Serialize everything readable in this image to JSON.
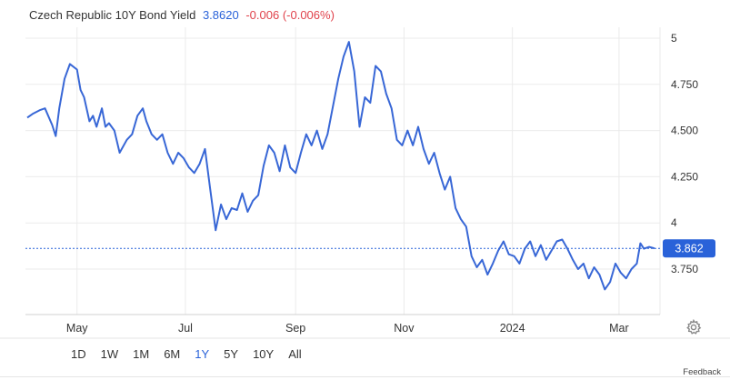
{
  "header": {
    "title": "Czech Republic 10Y Bond Yield",
    "price": "3.8620",
    "change": "-0.006 (-0.006%)"
  },
  "current_label": "3.862",
  "ranges": [
    {
      "label": "1D",
      "active": false
    },
    {
      "label": "1W",
      "active": false
    },
    {
      "label": "1M",
      "active": false
    },
    {
      "label": "6M",
      "active": false
    },
    {
      "label": "1Y",
      "active": true
    },
    {
      "label": "5Y",
      "active": false
    },
    {
      "label": "10Y",
      "active": false
    },
    {
      "label": "All",
      "active": false
    }
  ],
  "feedback": "Feedback",
  "colors": {
    "line": "#3867d6",
    "accent": "#2962d9",
    "negative": "#e0424b",
    "grid": "#ebebeb"
  },
  "icons": {
    "settings": "gear-icon"
  },
  "chart_data": {
    "type": "line",
    "title": "Czech Republic 10Y Bond Yield",
    "xlabel": "",
    "ylabel": "",
    "x_start": "2023-04-03",
    "x_end": "2024-03-21",
    "ylim": [
      3.5,
      5.0
    ],
    "y_ticks": [
      {
        "value": 5,
        "label": "5"
      },
      {
        "value": 4.75,
        "label": "4.750"
      },
      {
        "value": 4.5,
        "label": "4.500"
      },
      {
        "value": 4.25,
        "label": "4.250"
      },
      {
        "value": 4,
        "label": "4"
      },
      {
        "value": 3.75,
        "label": "3.750"
      }
    ],
    "x_ticks": [
      {
        "date": "2023-05-01",
        "label": "May"
      },
      {
        "date": "2023-07-01",
        "label": "Jul"
      },
      {
        "date": "2023-09-01",
        "label": "Sep"
      },
      {
        "date": "2023-11-01",
        "label": "Nov"
      },
      {
        "date": "2024-01-01",
        "label": "2024"
      },
      {
        "date": "2024-03-01",
        "label": "Mar"
      }
    ],
    "grid": true,
    "last_value": 3.862,
    "series": [
      {
        "points": [
          [
            "2023-04-03",
            4.57
          ],
          [
            "2023-04-06",
            4.59
          ],
          [
            "2023-04-10",
            4.61
          ],
          [
            "2023-04-13",
            4.62
          ],
          [
            "2023-04-17",
            4.53
          ],
          [
            "2023-04-19",
            4.47
          ],
          [
            "2023-04-21",
            4.62
          ],
          [
            "2023-04-24",
            4.78
          ],
          [
            "2023-04-27",
            4.86
          ],
          [
            "2023-05-01",
            4.83
          ],
          [
            "2023-05-03",
            4.72
          ],
          [
            "2023-05-05",
            4.68
          ],
          [
            "2023-05-08",
            4.55
          ],
          [
            "2023-05-10",
            4.58
          ],
          [
            "2023-05-12",
            4.52
          ],
          [
            "2023-05-15",
            4.62
          ],
          [
            "2023-05-17",
            4.52
          ],
          [
            "2023-05-19",
            4.54
          ],
          [
            "2023-05-22",
            4.5
          ],
          [
            "2023-05-25",
            4.38
          ],
          [
            "2023-05-29",
            4.45
          ],
          [
            "2023-06-01",
            4.48
          ],
          [
            "2023-06-04",
            4.58
          ],
          [
            "2023-06-07",
            4.62
          ],
          [
            "2023-06-09",
            4.55
          ],
          [
            "2023-06-12",
            4.48
          ],
          [
            "2023-06-15",
            4.45
          ],
          [
            "2023-06-18",
            4.48
          ],
          [
            "2023-06-21",
            4.38
          ],
          [
            "2023-06-24",
            4.32
          ],
          [
            "2023-06-27",
            4.38
          ],
          [
            "2023-06-30",
            4.35
          ],
          [
            "2023-07-03",
            4.3
          ],
          [
            "2023-07-06",
            4.27
          ],
          [
            "2023-07-09",
            4.32
          ],
          [
            "2023-07-12",
            4.4
          ],
          [
            "2023-07-15",
            4.18
          ],
          [
            "2023-07-18",
            3.96
          ],
          [
            "2023-07-21",
            4.1
          ],
          [
            "2023-07-24",
            4.02
          ],
          [
            "2023-07-27",
            4.08
          ],
          [
            "2023-07-30",
            4.07
          ],
          [
            "2023-08-02",
            4.16
          ],
          [
            "2023-08-05",
            4.06
          ],
          [
            "2023-08-08",
            4.12
          ],
          [
            "2023-08-11",
            4.15
          ],
          [
            "2023-08-14",
            4.31
          ],
          [
            "2023-08-17",
            4.42
          ],
          [
            "2023-08-20",
            4.38
          ],
          [
            "2023-08-23",
            4.28
          ],
          [
            "2023-08-26",
            4.42
          ],
          [
            "2023-08-29",
            4.3
          ],
          [
            "2023-09-01",
            4.27
          ],
          [
            "2023-09-04",
            4.38
          ],
          [
            "2023-09-07",
            4.48
          ],
          [
            "2023-09-10",
            4.42
          ],
          [
            "2023-09-13",
            4.5
          ],
          [
            "2023-09-16",
            4.4
          ],
          [
            "2023-09-19",
            4.48
          ],
          [
            "2023-09-22",
            4.63
          ],
          [
            "2023-09-25",
            4.78
          ],
          [
            "2023-09-28",
            4.9
          ],
          [
            "2023-10-01",
            4.98
          ],
          [
            "2023-10-04",
            4.82
          ],
          [
            "2023-10-07",
            4.52
          ],
          [
            "2023-10-10",
            4.68
          ],
          [
            "2023-10-13",
            4.65
          ],
          [
            "2023-10-16",
            4.85
          ],
          [
            "2023-10-19",
            4.82
          ],
          [
            "2023-10-22",
            4.7
          ],
          [
            "2023-10-25",
            4.62
          ],
          [
            "2023-10-28",
            4.45
          ],
          [
            "2023-10-31",
            4.42
          ],
          [
            "2023-11-03",
            4.5
          ],
          [
            "2023-11-06",
            4.42
          ],
          [
            "2023-11-09",
            4.52
          ],
          [
            "2023-11-12",
            4.4
          ],
          [
            "2023-11-15",
            4.32
          ],
          [
            "2023-11-18",
            4.38
          ],
          [
            "2023-11-21",
            4.27
          ],
          [
            "2023-11-24",
            4.18
          ],
          [
            "2023-11-27",
            4.25
          ],
          [
            "2023-11-30",
            4.08
          ],
          [
            "2023-12-03",
            4.02
          ],
          [
            "2023-12-06",
            3.98
          ],
          [
            "2023-12-09",
            3.82
          ],
          [
            "2023-12-12",
            3.76
          ],
          [
            "2023-12-15",
            3.8
          ],
          [
            "2023-12-18",
            3.72
          ],
          [
            "2023-12-21",
            3.78
          ],
          [
            "2023-12-24",
            3.85
          ],
          [
            "2023-12-27",
            3.9
          ],
          [
            "2023-12-30",
            3.83
          ],
          [
            "2024-01-02",
            3.82
          ],
          [
            "2024-01-05",
            3.78
          ],
          [
            "2024-01-08",
            3.86
          ],
          [
            "2024-01-11",
            3.9
          ],
          [
            "2024-01-14",
            3.82
          ],
          [
            "2024-01-17",
            3.88
          ],
          [
            "2024-01-20",
            3.8
          ],
          [
            "2024-01-23",
            3.85
          ],
          [
            "2024-01-26",
            3.9
          ],
          [
            "2024-01-29",
            3.91
          ],
          [
            "2024-02-01",
            3.86
          ],
          [
            "2024-02-04",
            3.8
          ],
          [
            "2024-02-07",
            3.75
          ],
          [
            "2024-02-10",
            3.78
          ],
          [
            "2024-02-13",
            3.7
          ],
          [
            "2024-02-16",
            3.76
          ],
          [
            "2024-02-19",
            3.72
          ],
          [
            "2024-02-22",
            3.64
          ],
          [
            "2024-02-25",
            3.68
          ],
          [
            "2024-02-28",
            3.78
          ],
          [
            "2024-03-02",
            3.73
          ],
          [
            "2024-03-05",
            3.7
          ],
          [
            "2024-03-08",
            3.75
          ],
          [
            "2024-03-11",
            3.78
          ],
          [
            "2024-03-13",
            3.89
          ],
          [
            "2024-03-15",
            3.86
          ],
          [
            "2024-03-18",
            3.87
          ],
          [
            "2024-03-21",
            3.862
          ]
        ]
      }
    ]
  }
}
